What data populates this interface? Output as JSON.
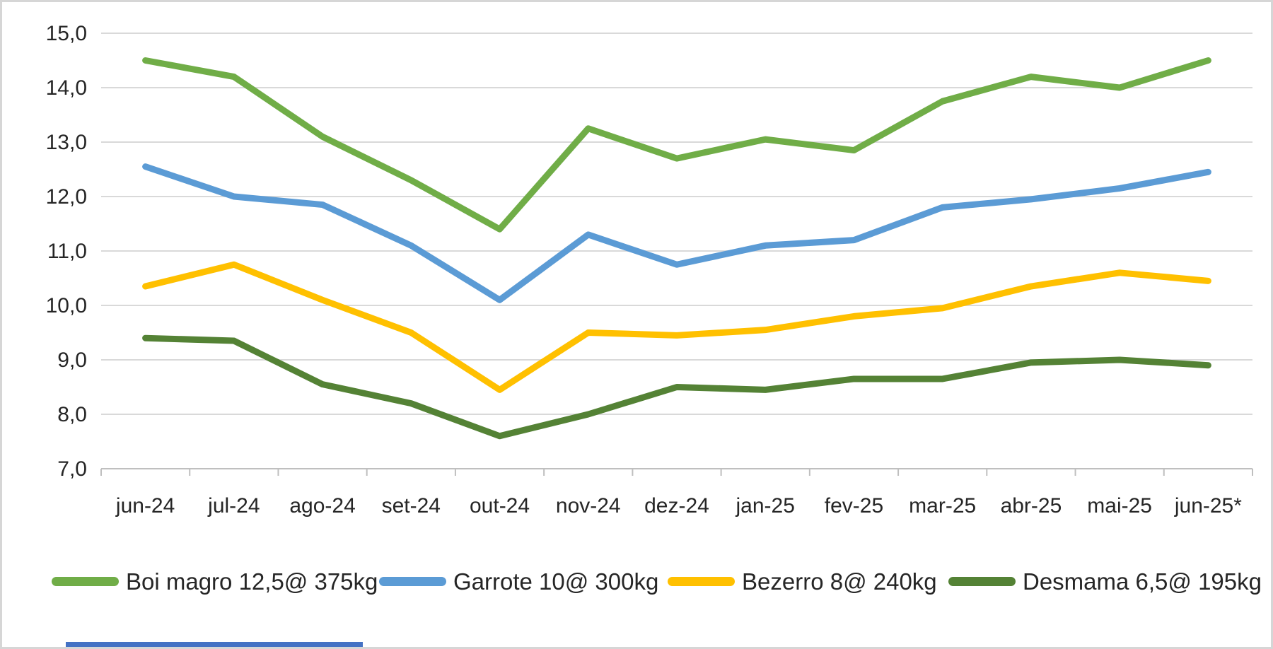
{
  "chart_data": {
    "type": "line",
    "title": "",
    "xlabel": "",
    "ylabel": "",
    "categories": [
      "jun-24",
      "jul-24",
      "ago-24",
      "set-24",
      "out-24",
      "nov-24",
      "dez-24",
      "jan-25",
      "fev-25",
      "mar-25",
      "abr-25",
      "mai-25",
      "jun-25*"
    ],
    "series": [
      {
        "name": "Boi magro 12,5@ 375kg",
        "color": "#70AD47",
        "values": [
          14.5,
          14.2,
          13.1,
          12.3,
          11.4,
          13.25,
          12.7,
          13.05,
          12.85,
          13.75,
          14.2,
          14.0,
          14.5
        ]
      },
      {
        "name": "Garrote 10@ 300kg",
        "color": "#5B9BD5",
        "values": [
          12.55,
          12.0,
          11.85,
          11.1,
          10.1,
          11.3,
          10.75,
          11.1,
          11.2,
          11.8,
          11.95,
          12.15,
          12.45
        ]
      },
      {
        "name": "Bezerro 8@ 240kg",
        "color": "#FFC000",
        "values": [
          10.35,
          10.75,
          10.1,
          9.5,
          8.45,
          9.5,
          9.45,
          9.55,
          9.8,
          9.95,
          10.35,
          10.6,
          10.45
        ]
      },
      {
        "name": "Desmama 6,5@ 195kg",
        "color": "#548235",
        "values": [
          9.4,
          9.35,
          8.55,
          8.2,
          7.6,
          8.0,
          8.5,
          8.45,
          8.65,
          8.65,
          8.95,
          9.0,
          8.9
        ]
      }
    ],
    "ylim": [
      7,
      15
    ],
    "y_tick_step": 1,
    "y_tick_labels": [
      "15,0",
      "14,0",
      "13,0",
      "12,0",
      "11,0",
      "10,0",
      "9,0",
      "8,0",
      "7,0"
    ],
    "grid": true,
    "legend_position": "bottom"
  },
  "colors": {
    "gridline": "#D9D9D9",
    "axis": "#BFBFBF",
    "text": "#262626",
    "frame_border": "#D6D6D6",
    "footer_bar": "#4472C4"
  }
}
